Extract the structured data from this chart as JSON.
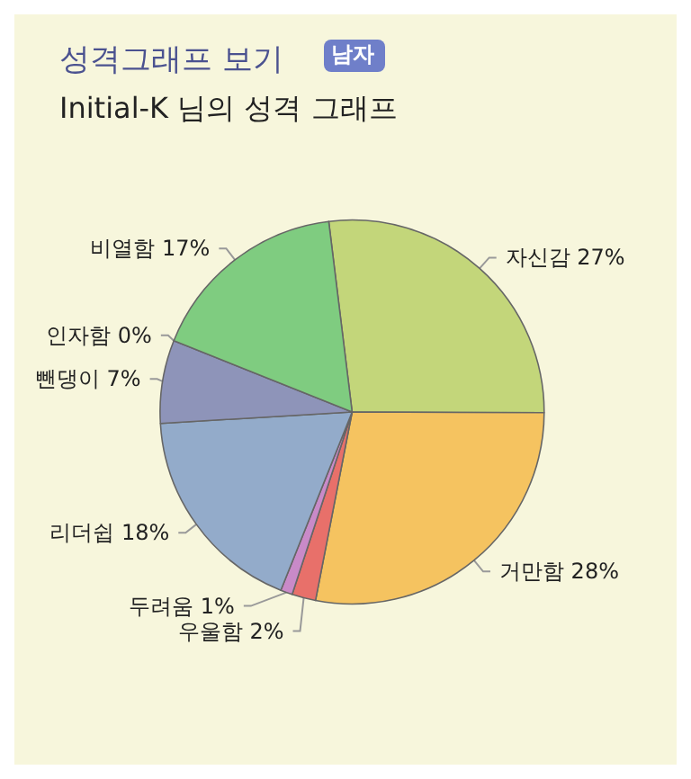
{
  "chart_data": {
    "type": "pie",
    "title": "성격그래프 보기",
    "subtitle": "Initial-K 님의 성격 그래프",
    "annotations": [
      "남자"
    ],
    "categories": [
      "자신감",
      "거만함",
      "우울함",
      "두려움",
      "리더쉽",
      "뺀댕이",
      "인자함",
      "비열함"
    ],
    "values": [
      27,
      28,
      2,
      1,
      18,
      7,
      0,
      17
    ],
    "colors": [
      "#c3d67a",
      "#f5c360",
      "#e8706a",
      "#c98ac8",
      "#93abca",
      "#8e94b9",
      "#9a9aa8",
      "#7fcc80"
    ],
    "value_labels": [
      "27%",
      "28%",
      "2%",
      "1%",
      "18%",
      "7%",
      "0%",
      "17%"
    ]
  }
}
